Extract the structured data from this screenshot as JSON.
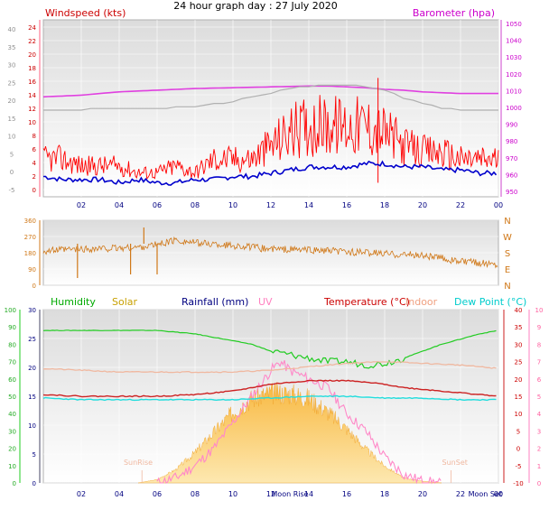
{
  "page_title": "24 hour graph day : 27 July 2020",
  "chart_data": [
    {
      "type": "line",
      "panel": "wind-barometer",
      "left_label": "Windspeed (kts)",
      "right_label": "Barometer (hpa)",
      "x_ticks": [
        "02",
        "04",
        "06",
        "08",
        "10",
        "12",
        "14",
        "16",
        "18",
        "20",
        "22",
        "00"
      ],
      "left_far_ticks": [
        "40",
        "35",
        "30",
        "25",
        "20",
        "15",
        "10",
        "5",
        "0",
        "-5"
      ],
      "left_ticks": [
        "24",
        "22",
        "20",
        "18",
        "16",
        "14",
        "12",
        "10",
        "8",
        "6",
        "4",
        "2",
        "0"
      ],
      "right_ticks": [
        "1050",
        "1040",
        "1030",
        "1020",
        "1010",
        "1000",
        "990",
        "980",
        "970",
        "960",
        "950"
      ],
      "ylim_left": [
        0,
        25
      ],
      "ylim_right": [
        950,
        1050
      ],
      "grid": true,
      "series": [
        {
          "name": "Barometer",
          "axis": "right",
          "color": "#e040e0",
          "x": [
            0,
            2,
            4,
            6,
            8,
            10,
            12,
            14,
            15,
            16,
            17,
            18,
            19,
            20,
            21,
            22,
            23,
            24
          ],
          "values": [
            1008,
            1009,
            1011,
            1012,
            1013,
            1013.5,
            1014,
            1014.5,
            1014.5,
            1014,
            1013.5,
            1012.5,
            1012,
            1011,
            1010.5,
            1010,
            1010,
            1010
          ]
        },
        {
          "name": "Barometer trend",
          "axis": "right",
          "color": "#b0b0b0",
          "x": [
            0,
            2,
            3,
            4,
            6,
            8,
            10,
            11,
            12,
            13,
            14,
            15,
            16,
            17,
            18,
            19,
            20,
            21,
            22,
            23,
            24
          ],
          "values": [
            1000,
            1000,
            1001,
            1001,
            1001,
            1002,
            1005,
            1008,
            1010,
            1013,
            1014,
            1015,
            1015,
            1014,
            1012,
            1007,
            1004,
            1001,
            1000,
            1000,
            1000
          ]
        },
        {
          "name": "Windspeed",
          "axis": "left",
          "color": "#ff0000",
          "x": [
            0,
            1,
            2,
            3,
            4,
            5,
            6,
            7,
            8,
            9,
            10,
            11,
            12,
            13,
            14,
            15,
            16,
            17,
            18,
            19,
            20,
            21,
            22,
            23,
            24
          ],
          "values": [
            4,
            4,
            3,
            3,
            3,
            2,
            2,
            3,
            2,
            4,
            4,
            4,
            6,
            8,
            9,
            9,
            9,
            9,
            8,
            6,
            5,
            5,
            4,
            4,
            4
          ]
        },
        {
          "name": "Wind average",
          "axis": "left",
          "color": "#0000cc",
          "x": [
            0,
            1,
            2,
            3,
            4,
            5,
            6,
            7,
            8,
            9,
            10,
            11,
            12,
            13,
            14,
            15,
            16,
            17,
            18,
            19,
            20,
            21,
            22,
            23,
            24
          ],
          "values": [
            1.5,
            1,
            1,
            1,
            0.5,
            1,
            0.5,
            0.5,
            1,
            1,
            1.5,
            1.5,
            2,
            2.5,
            3,
            3,
            3,
            3.5,
            3.5,
            3,
            3,
            2.5,
            2.5,
            2,
            2
          ]
        }
      ]
    },
    {
      "type": "scatter",
      "panel": "wind-direction",
      "left_ticks": [
        "360",
        "270",
        "180",
        "90",
        "0"
      ],
      "right_ticks": [
        "N",
        "W",
        "S",
        "E",
        "N"
      ],
      "ylim": [
        0,
        360
      ],
      "series": [
        {
          "name": "Wind direction",
          "color": "#d07818",
          "x": [
            0,
            2,
            4,
            5,
            6,
            7,
            8,
            10,
            12,
            14,
            16,
            18,
            20,
            21,
            22,
            23,
            24
          ],
          "values": [
            190,
            200,
            205,
            210,
            225,
            250,
            235,
            220,
            200,
            195,
            185,
            175,
            165,
            150,
            130,
            125,
            115
          ]
        }
      ]
    },
    {
      "type": "line",
      "panel": "temperature-humidity-solar",
      "legend": [
        "Humidity",
        "Solar",
        "Rainfall (mm)",
        "UV",
        "Temperature (°C)",
        "Indoor",
        "Dew Point (°C)"
      ],
      "legend_colors": [
        "#00aa00",
        "#c8a000",
        "#000080",
        "#ff80c0",
        "#cc0000",
        "#f0a080",
        "#00cccc"
      ],
      "x_ticks": [
        "02",
        "04",
        "06",
        "08",
        "10",
        "12",
        "14",
        "16",
        "18",
        "20",
        "22",
        "00"
      ],
      "x_annotations": [
        "SunRise",
        "Moon Rise",
        "SunSet",
        "Moon Set"
      ],
      "rain_ticks": [
        "30",
        "25",
        "20",
        "15",
        "10",
        "5",
        "0"
      ],
      "humidity_ticks": [
        "100",
        "90",
        "80",
        "70",
        "60",
        "50",
        "40",
        "30",
        "20",
        "10",
        "0"
      ],
      "temp_ticks": [
        "40",
        "35",
        "30",
        "25",
        "20",
        "15",
        "10",
        "5",
        "0",
        "-5",
        "-10"
      ],
      "uv_ticks": [
        "10",
        "9",
        "8",
        "7",
        "6",
        "5",
        "4",
        "3",
        "2",
        "1",
        "0"
      ],
      "grid": true,
      "series": [
        {
          "name": "Humidity",
          "axis": "humidity",
          "color": "#22cc22",
          "x": [
            0,
            2,
            4,
            6,
            8,
            9,
            10,
            11,
            12,
            13,
            14,
            15,
            16,
            17,
            18,
            19,
            20,
            21,
            22,
            23,
            24
          ],
          "values": [
            88,
            88,
            88,
            88,
            86,
            84,
            82,
            80,
            76,
            74,
            72,
            70,
            70,
            68,
            69,
            72,
            76,
            80,
            83,
            86,
            88
          ]
        },
        {
          "name": "Indoor",
          "axis": "temp",
          "color": "#f0b8a0",
          "x": [
            0,
            2,
            4,
            6,
            8,
            10,
            12,
            14,
            16,
            18,
            20,
            22,
            24
          ],
          "values": [
            23,
            22.5,
            22,
            22,
            22,
            22,
            22.5,
            23.5,
            24.5,
            25,
            24.5,
            24,
            23
          ]
        },
        {
          "name": "Temperature (°C)",
          "axis": "temp",
          "color": "#cc2222",
          "x": [
            0,
            2,
            4,
            6,
            8,
            10,
            11,
            12,
            13,
            14,
            15,
            16,
            17,
            18,
            19,
            20,
            21,
            22,
            23,
            24
          ],
          "values": [
            15.5,
            15,
            15,
            15,
            15.5,
            16.5,
            17.5,
            18.5,
            19,
            19.5,
            19.5,
            19.5,
            19,
            18.5,
            17.5,
            17,
            16.5,
            16,
            15.5,
            15
          ]
        },
        {
          "name": "Dew Point (°C)",
          "axis": "temp",
          "color": "#22dddd",
          "x": [
            0,
            2,
            4,
            6,
            8,
            10,
            12,
            14,
            16,
            18,
            20,
            22,
            24
          ],
          "values": [
            14.5,
            14,
            14,
            14,
            14,
            14,
            14.5,
            15,
            15,
            14.5,
            14.5,
            14,
            14
          ]
        },
        {
          "name": "UV",
          "axis": "uv",
          "color": "#ff88c8",
          "x": [
            6,
            7,
            8,
            9,
            10,
            11,
            12,
            12.5,
            13,
            14,
            15,
            16,
            17,
            18,
            19,
            20,
            21
          ],
          "values": [
            0,
            0.3,
            1,
            2,
            3.5,
            5,
            6.5,
            7,
            6.5,
            6,
            5.5,
            4,
            3,
            1.5,
            0.5,
            0.1,
            0
          ]
        },
        {
          "name": "Solar",
          "axis": "uv",
          "color": "#ffb830",
          "x": [
            5,
            6,
            7,
            8,
            9,
            10,
            11,
            12,
            13,
            14,
            15,
            16,
            17,
            18,
            19,
            20,
            21
          ],
          "values": [
            0,
            0.2,
            0.8,
            1.8,
            3,
            4.2,
            5,
            5.3,
            5.3,
            5,
            4.2,
            3.2,
            2,
            1,
            0.3,
            0.1,
            0
          ]
        }
      ]
    }
  ]
}
